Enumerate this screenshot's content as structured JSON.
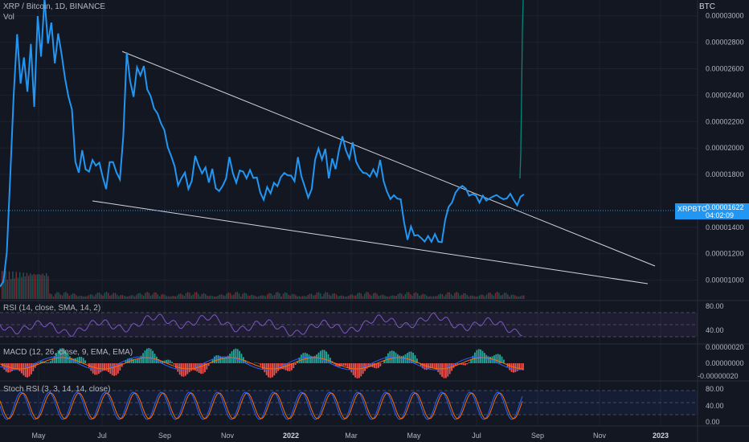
{
  "legend": {
    "title": "XRP / Bitcoin, 1D, BINANCE",
    "volume": "Vol",
    "rsi": "RSI (14, close, SMA, 14, 2)",
    "macd": "MACD (12, 26, close, 9, EMA, EMA)",
    "stoch": "Stoch RSI (3, 3, 14, 14, close)"
  },
  "price_axis": {
    "unit": "BTC",
    "ticks": [
      "0.00003000",
      "0.00002800",
      "0.00002600",
      "0.00002400",
      "0.00002200",
      "0.00002000",
      "0.00001800",
      "0.00001400",
      "0.00001200",
      "0.00001000"
    ]
  },
  "rsi_axis": {
    "ticks": [
      "80.00",
      "40.00"
    ]
  },
  "macd_axis": {
    "ticks": [
      "0.00000020",
      "0.00000000",
      "-0.00000020"
    ]
  },
  "stoch_axis": {
    "ticks": [
      "80.00",
      "40.00",
      "0.00"
    ]
  },
  "time_axis": [
    "May",
    "Jul",
    "Sep",
    "Nov",
    "2022",
    "Mar",
    "May",
    "Jul",
    "Sep",
    "Nov",
    "2023"
  ],
  "last_price": {
    "symbol": "XRPBTC",
    "value": "0.00001622",
    "countdown": "04:02:09"
  },
  "colors": {
    "background": "#131722",
    "price_line": "#2196f3",
    "trendline": "#d1d4dc",
    "rsi": "#7e57c2",
    "macd_line": "#2962ff",
    "signal_line": "#ff6d00",
    "hist_up": "#26a69a",
    "hist_down": "#ef5350",
    "stoch_k": "#2962ff",
    "stoch_d": "#ff6d00",
    "teal_line": "#00897b"
  },
  "chart_data": {
    "type": "line",
    "symbol": "XRP / Bitcoin",
    "unit": "BTC",
    "ylim": [
      9e-06,
      3.12e-05
    ],
    "x_labels": [
      "May",
      "Jul",
      "Sep",
      "Nov",
      "2022",
      "Mar",
      "May",
      "Jul",
      "Sep",
      "Nov",
      "2023"
    ],
    "series": [
      {
        "values": [
          9.5e-06,
          1e-05,
          1.2e-05,
          1.8e-05,
          2.4e-05,
          2.85e-05,
          2.5e-05,
          2.68e-05,
          2.42e-05,
          2.8e-05,
          2.3e-05,
          3e-05,
          2.7e-05,
          3.12e-05,
          2.8e-05,
          2.95e-05,
          2.63e-05,
          2.88e-05,
          2.7e-05,
          2.52e-05,
          2.4e-05,
          2.28e-05,
          1.9e-05,
          1.82e-05,
          1.97e-05,
          1.85e-05,
          1.82e-05,
          1.9e-05,
          1.88e-05,
          1.88e-05,
          1.78e-05,
          1.7e-05,
          1.88e-05,
          1.9e-05,
          1.82e-05,
          1.75e-05,
          2.1e-05,
          2.72e-05,
          2.5e-05,
          2.4e-05,
          2.6e-05,
          2.55e-05,
          2.63e-05,
          2.43e-05,
          2.4e-05,
          2.3e-05,
          2.25e-05,
          2.2e-05,
          2.13e-05,
          2e-05,
          1.95e-05,
          1.85e-05,
          1.72e-05,
          1.78e-05,
          1.8e-05,
          1.7e-05,
          1.75e-05,
          1.93e-05,
          1.88e-05,
          1.8e-05,
          1.85e-05,
          1.75e-05,
          1.83e-05,
          1.7e-05,
          1.68e-05,
          1.7e-05,
          1.78e-05,
          1.93e-05,
          1.8e-05,
          1.75e-05,
          1.82e-05,
          1.82e-05,
          1.78e-05,
          1.82e-05,
          1.78e-05,
          1.78e-05,
          1.65e-05,
          1.62e-05,
          1.7e-05,
          1.65e-05,
          1.75e-05,
          1.7e-05,
          1.78e-05,
          1.82e-05,
          1.78e-05,
          1.8e-05,
          1.75e-05,
          1.92e-05,
          1.8e-05,
          1.7e-05,
          1.62e-05,
          1.7e-05,
          1.9e-05,
          2e-05,
          1.92e-05,
          1.98e-05,
          1.78e-05,
          1.92e-05,
          1.83e-05,
          2e-05,
          2.08e-05,
          1.98e-05,
          1.93e-05,
          2.03e-05,
          1.9e-05,
          1.85e-05,
          1.8e-05,
          1.82e-05,
          1.78e-05,
          1.83e-05,
          1.8e-05,
          1.9e-05,
          1.75e-05,
          1.68e-05,
          1.6e-05,
          1.65e-05,
          1.62e-05,
          1.6e-05,
          1.45e-05,
          1.3e-05,
          1.4e-05,
          1.35e-05,
          1.33e-05,
          1.32e-05,
          1.3e-05,
          1.32e-05,
          1.3e-05,
          1.35e-05,
          1.28e-05,
          1.3e-05,
          1.45e-05,
          1.55e-05,
          1.6e-05,
          1.65e-05,
          1.7e-05,
          1.72e-05,
          1.68e-05,
          1.65e-05,
          1.65e-05,
          1.63e-05,
          1.6e-05,
          1.63e-05,
          1.6e-05,
          1.63e-05,
          1.62e-05,
          1.65e-05,
          1.63e-05,
          1.6e-05,
          1.63e-05,
          1.65e-05,
          1.6e-05,
          1.58e-05,
          1.62e-05,
          1.65e-05
        ]
      }
    ],
    "trendlines": [
      {
        "from": [
          2.82e-05,
          0.3
        ],
        "to": [
          1.18e-05,
          1.0
        ],
        "label": ""
      },
      {
        "from": [
          1.67e-05,
          0.0
        ],
        "to": [
          1.05e-05,
          1.0
        ],
        "label": ""
      }
    ],
    "last_value": 1.622e-05
  }
}
